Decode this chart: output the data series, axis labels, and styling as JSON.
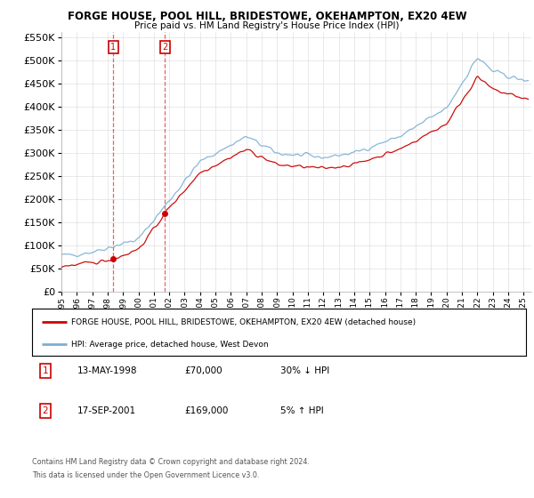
{
  "title": "FORGE HOUSE, POOL HILL, BRIDESTOWE, OKEHAMPTON, EX20 4EW",
  "subtitle": "Price paid vs. HM Land Registry's House Price Index (HPI)",
  "ylim": [
    0,
    560000
  ],
  "yticks": [
    0,
    50000,
    100000,
    150000,
    200000,
    250000,
    300000,
    350000,
    400000,
    450000,
    500000,
    550000
  ],
  "xlim_start": 1995.0,
  "xlim_end": 2025.5,
  "legend_line1": "FORGE HOUSE, POOL HILL, BRIDESTOWE, OKEHAMPTON, EX20 4EW (detached house)",
  "legend_line2": "HPI: Average price, detached house, West Devon",
  "sale1_date": "13-MAY-1998",
  "sale1_price": "£70,000",
  "sale1_hpi": "30% ↓ HPI",
  "sale1_year": 1998.37,
  "sale1_value": 70000,
  "sale2_date": "17-SEP-2001",
  "sale2_price": "£169,000",
  "sale2_hpi": "5% ↑ HPI",
  "sale2_year": 2001.71,
  "sale2_value": 169000,
  "footnote1": "Contains HM Land Registry data © Crown copyright and database right 2024.",
  "footnote2": "This data is licensed under the Open Government Licence v3.0.",
  "line_color_red": "#cc0000",
  "line_color_blue": "#7bafd4",
  "background_color": "#ffffff",
  "grid_color": "#e0e0e0"
}
